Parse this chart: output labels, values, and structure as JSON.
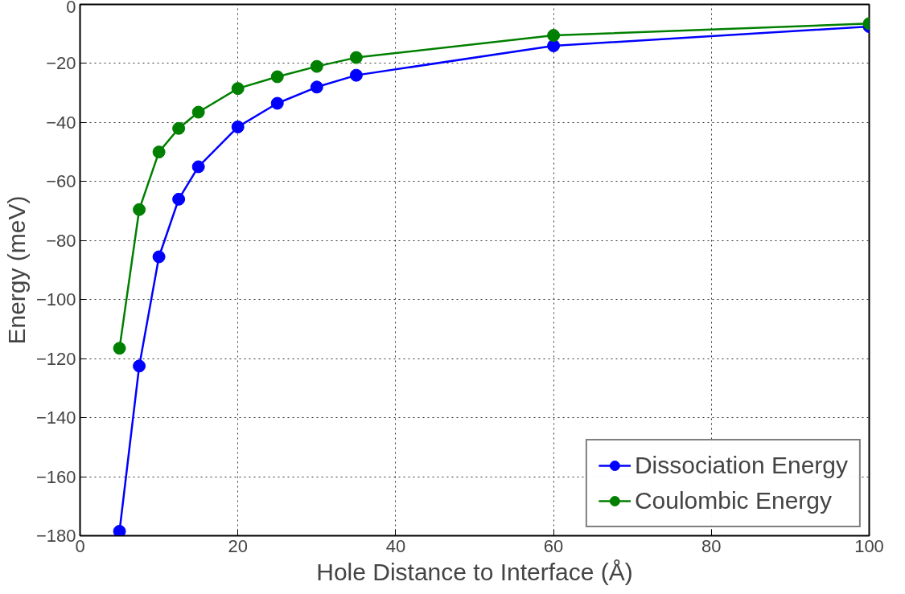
{
  "chart_data": {
    "type": "line",
    "xlabel": "Hole Distance to Interface (Å)",
    "ylabel": "Energy (meV)",
    "xlim": [
      0,
      100
    ],
    "ylim": [
      -180,
      0
    ],
    "xticks": [
      0,
      20,
      40,
      60,
      80,
      100
    ],
    "yticks": [
      -180,
      -160,
      -140,
      -120,
      -100,
      -80,
      -60,
      -40,
      -20,
      0
    ],
    "grid": true,
    "legend": "bottom right",
    "marker": "circle",
    "line_style": "solid",
    "series": [
      {
        "name": "Dissociation Energy",
        "color": "#0000ff",
        "x": [
          5,
          7.5,
          10,
          12.5,
          15,
          20,
          25,
          30,
          35,
          60,
          100
        ],
        "values": [
          -178.5,
          -122.5,
          -85.5,
          -66,
          -55,
          -41.5,
          -33.5,
          -28,
          -24,
          -14,
          -7.5
        ]
      },
      {
        "name": "Coulombic Energy",
        "color": "#008000",
        "x": [
          5,
          7.5,
          10,
          12.5,
          15,
          20,
          25,
          30,
          35,
          60,
          100
        ],
        "values": [
          -116.5,
          -69.5,
          -50,
          -42,
          -36.5,
          -28.5,
          -24.5,
          -21,
          -18,
          -10.5,
          -6.5
        ]
      }
    ]
  }
}
